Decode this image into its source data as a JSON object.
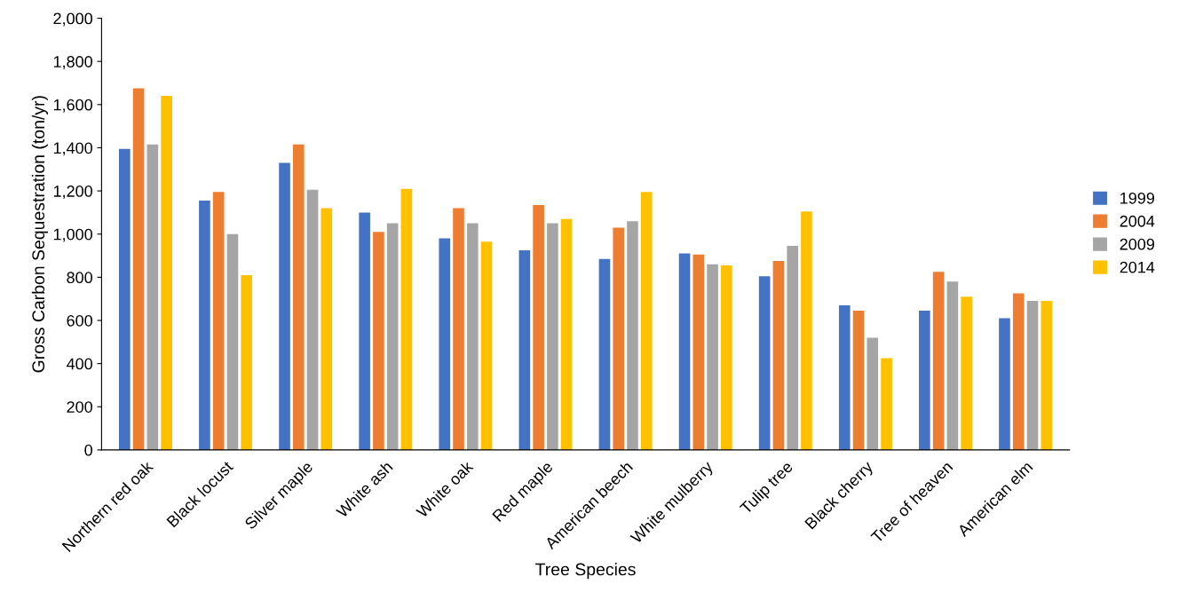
{
  "chart_data": {
    "type": "bar",
    "xlabel": "Tree Species",
    "ylabel": "Gross Carbon Sequestration (ton/yr)",
    "categories": [
      "Northern red oak",
      "Black locust",
      "Silver maple",
      "White ash",
      "White oak",
      "Red maple",
      "American beech",
      "White mulberry",
      "Tulip tree",
      "Black cherry",
      "Tree of heaven",
      "American elm"
    ],
    "series": [
      {
        "name": "1999",
        "color": "#4472c4",
        "values": [
          1395,
          1155,
          1330,
          1100,
          980,
          925,
          885,
          910,
          805,
          670,
          645,
          610
        ]
      },
      {
        "name": "2004",
        "color": "#ed7d31",
        "values": [
          1675,
          1195,
          1415,
          1010,
          1120,
          1135,
          1030,
          905,
          875,
          645,
          825,
          725
        ]
      },
      {
        "name": "2009",
        "color": "#a5a5a5",
        "values": [
          1415,
          1000,
          1205,
          1050,
          1050,
          1050,
          1060,
          860,
          945,
          520,
          780,
          690
        ]
      },
      {
        "name": "2014",
        "color": "#ffc000",
        "values": [
          1640,
          810,
          1120,
          1210,
          965,
          1070,
          1195,
          855,
          1105,
          425,
          710,
          690
        ]
      }
    ],
    "ylim": [
      0,
      2000
    ],
    "yticks": [
      {
        "value": 0,
        "label": "0"
      },
      {
        "value": 200,
        "label": "200"
      },
      {
        "value": 400,
        "label": "400"
      },
      {
        "value": 600,
        "label": "600"
      },
      {
        "value": 800,
        "label": "800"
      },
      {
        "value": 1000,
        "label": "1,000"
      },
      {
        "value": 1200,
        "label": "1,200"
      },
      {
        "value": 1400,
        "label": "1,400"
      },
      {
        "value": 1600,
        "label": "1,600"
      },
      {
        "value": 1800,
        "label": "1,800"
      },
      {
        "value": 2000,
        "label": "2,000"
      }
    ],
    "grid": false,
    "legend": "right"
  }
}
